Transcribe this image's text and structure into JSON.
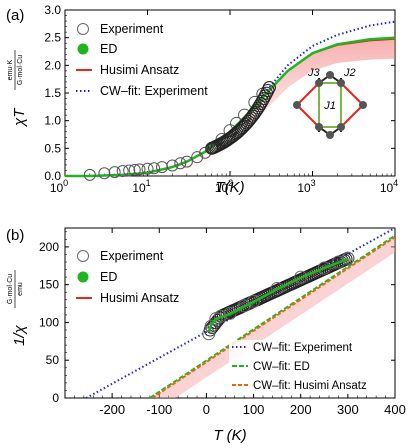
{
  "chart_data": [
    {
      "panel_label": "(a)",
      "type": "line",
      "xlabel": "T(K)",
      "ylabel": "χT",
      "ylabel_unit_num": "emu·K",
      "ylabel_unit_den": "G·mol·Cu",
      "xscale": "log",
      "xlim": [
        1,
        10000
      ],
      "ylim": [
        0,
        3
      ],
      "xticks": [
        1,
        10,
        100,
        1000,
        10000
      ],
      "xtick_labels": [
        "10^0",
        "10^1",
        "10^2",
        "10^3",
        "10^4"
      ],
      "yticks": [
        0,
        0.5,
        1,
        1.5,
        2,
        2.5,
        3
      ],
      "ytick_labels": [
        "0.0",
        "0.5",
        "1.0",
        "1.5",
        "2.0",
        "2.5",
        "3.0"
      ],
      "grid": false,
      "legend_position": "top-left",
      "legend": [
        {
          "label": "Experiment",
          "style": "open-circle",
          "color": "#555555"
        },
        {
          "label": "ED",
          "style": "filled-circle",
          "color": "#1fb51f"
        },
        {
          "label": "Husimi Ansatz",
          "style": "line",
          "color": "#e8251e"
        },
        {
          "label": "CW–fit: Experiment",
          "style": "dotted",
          "color": "#2222dd"
        }
      ],
      "series": [
        {
          "name": "Experiment",
          "x": [
            2,
            3,
            4,
            5,
            6,
            7,
            8,
            10,
            12,
            15,
            20,
            25,
            30,
            40,
            50,
            60,
            80,
            100,
            120,
            150,
            200,
            250,
            300
          ],
          "y": [
            0.02,
            0.05,
            0.07,
            0.09,
            0.1,
            0.11,
            0.12,
            0.13,
            0.14,
            0.16,
            0.19,
            0.23,
            0.26,
            0.34,
            0.42,
            0.5,
            0.66,
            0.82,
            0.95,
            1.1,
            1.33,
            1.48,
            1.6
          ]
        },
        {
          "name": "ED",
          "x": [
            1,
            2,
            5,
            10,
            20,
            30,
            50,
            80,
            100,
            150,
            200,
            300,
            500,
            1000,
            2000,
            5000,
            10000
          ],
          "y": [
            0.0,
            0.0,
            0.02,
            0.06,
            0.16,
            0.26,
            0.44,
            0.67,
            0.8,
            1.06,
            1.26,
            1.55,
            1.9,
            2.22,
            2.38,
            2.47,
            2.5
          ]
        },
        {
          "name": "Husimi Ansatz",
          "x": [
            1,
            2,
            5,
            10,
            20,
            30,
            50,
            80,
            100,
            150,
            200,
            300,
            500,
            1000,
            2000,
            5000,
            10000
          ],
          "y": [
            0.0,
            0.0,
            0.02,
            0.06,
            0.16,
            0.26,
            0.44,
            0.67,
            0.8,
            1.06,
            1.26,
            1.55,
            1.9,
            2.22,
            2.37,
            2.45,
            2.48
          ]
        },
        {
          "name": "CW–fit: Experiment",
          "x": [
            1,
            2,
            5,
            10,
            20,
            30,
            50,
            80,
            100,
            150,
            200,
            300,
            500,
            1000,
            2000,
            5000,
            10000
          ],
          "y": [
            0.0,
            0.0,
            0.02,
            0.06,
            0.16,
            0.26,
            0.44,
            0.67,
            0.8,
            1.06,
            1.26,
            1.6,
            2.0,
            2.35,
            2.55,
            2.72,
            2.79
          ]
        }
      ],
      "inset": {
        "labels": [
          "J3",
          "J2",
          "J1"
        ]
      }
    },
    {
      "panel_label": "(b)",
      "type": "line",
      "xlabel": "T (K)",
      "ylabel": "1/χ",
      "ylabel_unit_num": "G·mol·Cu",
      "ylabel_unit_den": "emu",
      "xlim": [
        -300,
        400
      ],
      "ylim": [
        0,
        225
      ],
      "xticks": [
        -200,
        -100,
        0,
        100,
        200,
        300,
        400
      ],
      "xtick_labels": [
        "-200",
        "-100",
        "0",
        "100",
        "200",
        "300",
        "400"
      ],
      "yticks": [
        0,
        50,
        100,
        150,
        200
      ],
      "ytick_labels": [
        "0",
        "50",
        "100",
        "150",
        "200"
      ],
      "grid": false,
      "legend_position": "top-left",
      "legend": [
        {
          "label": "Experiment",
          "style": "open-circle",
          "color": "#555555"
        },
        {
          "label": "ED",
          "style": "filled-circle",
          "color": "#1fb51f"
        },
        {
          "label": "Husimi Ansatz",
          "style": "line",
          "color": "#e8251e"
        }
      ],
      "legend2": [
        {
          "label": "CW–fit: Experiment",
          "style": "dotted",
          "color": "#2222dd"
        },
        {
          "label": "CW–fit: ED",
          "style": "dashed",
          "color": "#1fb51f"
        },
        {
          "label": "CW–fit: Husimi Ansatz",
          "style": "dashed",
          "color": "#e06a10"
        }
      ],
      "series": [
        {
          "name": "Experiment",
          "x": [
            5,
            10,
            20,
            30,
            50,
            80,
            100,
            150,
            200,
            250,
            280,
            300
          ],
          "y": [
            85,
            95,
            105,
            108,
            112,
            122,
            128,
            145,
            160,
            172,
            180,
            185
          ]
        },
        {
          "name": "ED",
          "x": [
            5,
            10,
            20,
            30,
            50,
            80,
            100,
            150,
            200,
            250,
            300
          ],
          "y": [
            88,
            97,
            104,
            107,
            111,
            121,
            127,
            144,
            159,
            172,
            184
          ]
        },
        {
          "name": "Husimi Ansatz",
          "x": [
            5,
            10,
            20,
            30,
            50,
            80,
            100,
            150,
            200,
            250,
            300
          ],
          "y": [
            86,
            96,
            103,
            106,
            110,
            120,
            126,
            143,
            158,
            171,
            183
          ]
        },
        {
          "name": "CW–fit: Experiment",
          "x": [
            -255,
            400
          ],
          "y": [
            0,
            225
          ]
        },
        {
          "name": "CW–fit: ED",
          "x": [
            -120,
            400
          ],
          "y": [
            0,
            215
          ]
        },
        {
          "name": "CW–fit: Husimi Ansatz",
          "x": [
            -115,
            400
          ],
          "y": [
            0,
            213
          ]
        }
      ]
    }
  ]
}
